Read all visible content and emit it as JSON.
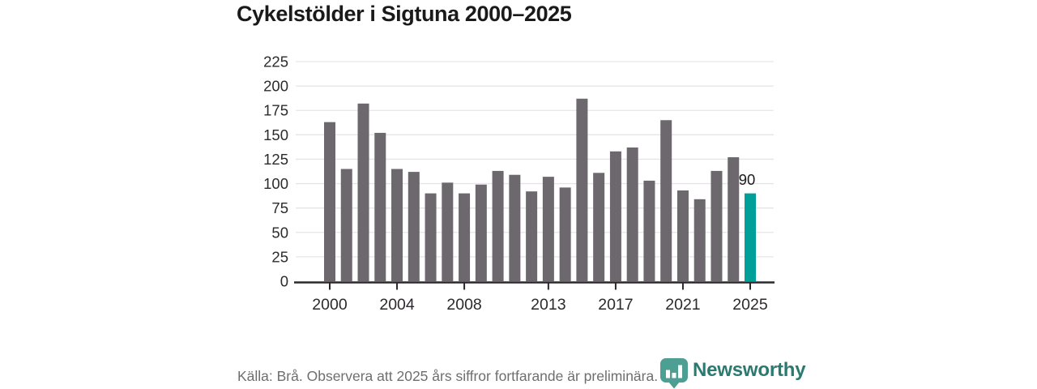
{
  "title": {
    "text": "Cykelstölder i Sigtuna 2000–2025"
  },
  "chart_data": {
    "type": "bar",
    "title": "Cykelstölder i Sigtuna 2000–2025",
    "categories": [
      2000,
      2001,
      2002,
      2003,
      2004,
      2005,
      2006,
      2007,
      2008,
      2009,
      2010,
      2011,
      2012,
      2013,
      2014,
      2015,
      2016,
      2017,
      2018,
      2019,
      2020,
      2021,
      2022,
      2023,
      2024,
      2025
    ],
    "values": [
      163,
      115,
      182,
      152,
      115,
      112,
      90,
      101,
      90,
      99,
      113,
      109,
      92,
      107,
      96,
      187,
      111,
      133,
      137,
      103,
      165,
      93,
      84,
      113,
      127,
      90
    ],
    "xlabel": "",
    "ylabel": "",
    "ylim": [
      0,
      225
    ],
    "y_ticks": [
      0,
      25,
      50,
      75,
      100,
      125,
      150,
      175,
      200,
      225
    ],
    "x_tick_labels": [
      "2000",
      "2004",
      "2008",
      "2013",
      "2017",
      "2021",
      "2025"
    ],
    "grid": "horizontal",
    "legend": "none",
    "bar_color": "#6c686e",
    "highlight_color": "#00a098",
    "highlight_year": 2025,
    "data_label": {
      "year": 2025,
      "text": "90"
    }
  },
  "footer": {
    "source": "Källa: Brå. Observera att 2025 års siffror fortfarande är preliminära.",
    "brand": "Newsworthy",
    "brand_color": "#2a7a70",
    "logo_icon": "bar-chart-pin-icon",
    "logo_icon_color": "#4d9e93"
  }
}
